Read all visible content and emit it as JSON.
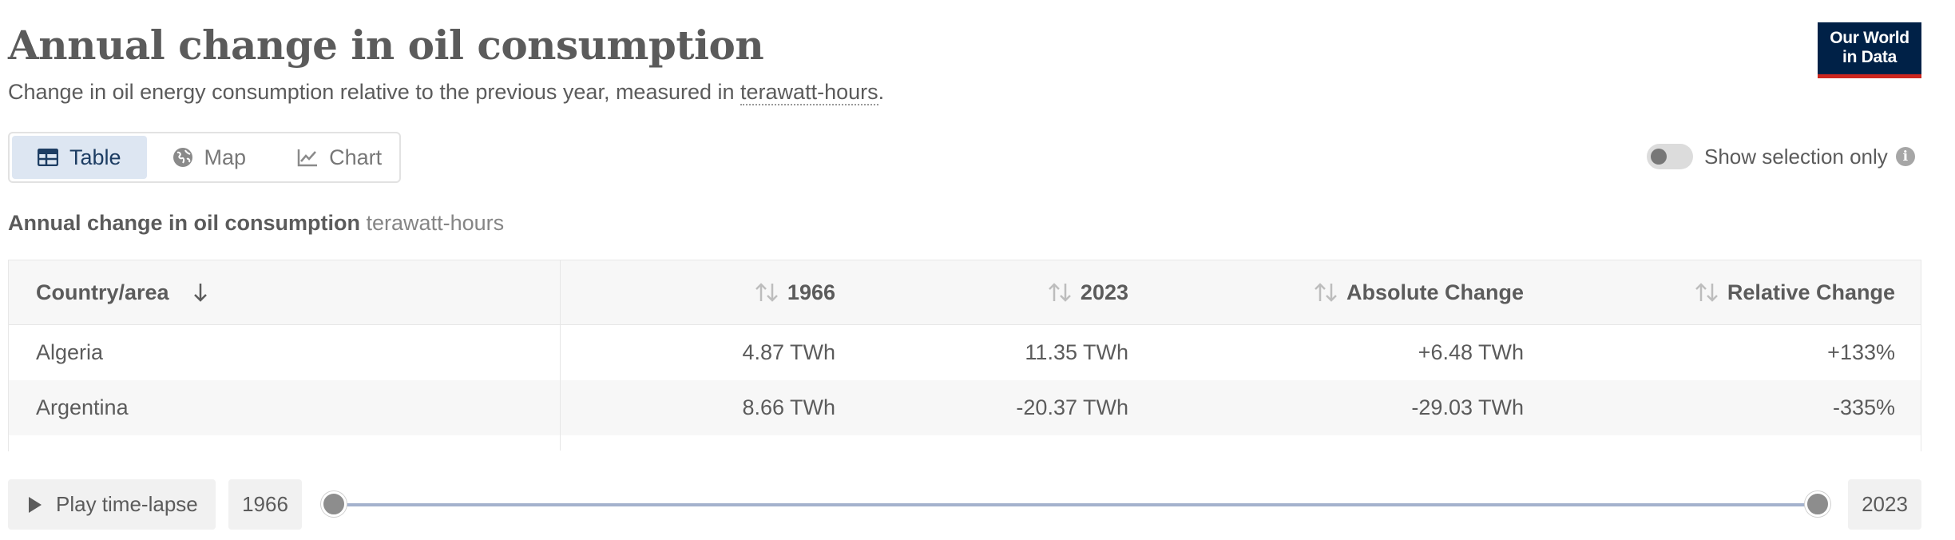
{
  "header": {
    "title": "Annual change in oil consumption",
    "subtitle_prefix": "Change in oil energy consumption relative to the previous year, measured in ",
    "subtitle_unit": "terawatt-hours",
    "subtitle_suffix": "."
  },
  "logo": {
    "line1": "Our World",
    "line2": "in Data"
  },
  "tabs": [
    {
      "label": "Table",
      "icon": "table-icon",
      "active": true
    },
    {
      "label": "Map",
      "icon": "globe-icon",
      "active": false
    },
    {
      "label": "Chart",
      "icon": "line-chart-icon",
      "active": false
    }
  ],
  "toggle": {
    "label": "Show selection only",
    "on": false
  },
  "table": {
    "caption_main": "Annual change in oil consumption",
    "caption_unit": "terawatt-hours",
    "columns": [
      "Country/area",
      "1966",
      "2023",
      "Absolute Change",
      "Relative Change"
    ],
    "rows": [
      {
        "country": "Algeria",
        "v1966": "4.87 TWh",
        "v2023": "11.35 TWh",
        "abs": "+6.48 TWh",
        "rel": "+133%"
      },
      {
        "country": "Argentina",
        "v1966": "8.66 TWh",
        "v2023": "-20.37 TWh",
        "abs": "-29.03 TWh",
        "rel": "-335%"
      }
    ]
  },
  "timeline": {
    "play_label": "Play time-lapse",
    "start_year": "1966",
    "end_year": "2023"
  },
  "colors": {
    "accent": "#1d3d63",
    "active_tab_bg": "#dde6f2",
    "logo_bg": "#002147",
    "logo_bar": "#ce261e",
    "slider_track": "#a4b2cd"
  }
}
